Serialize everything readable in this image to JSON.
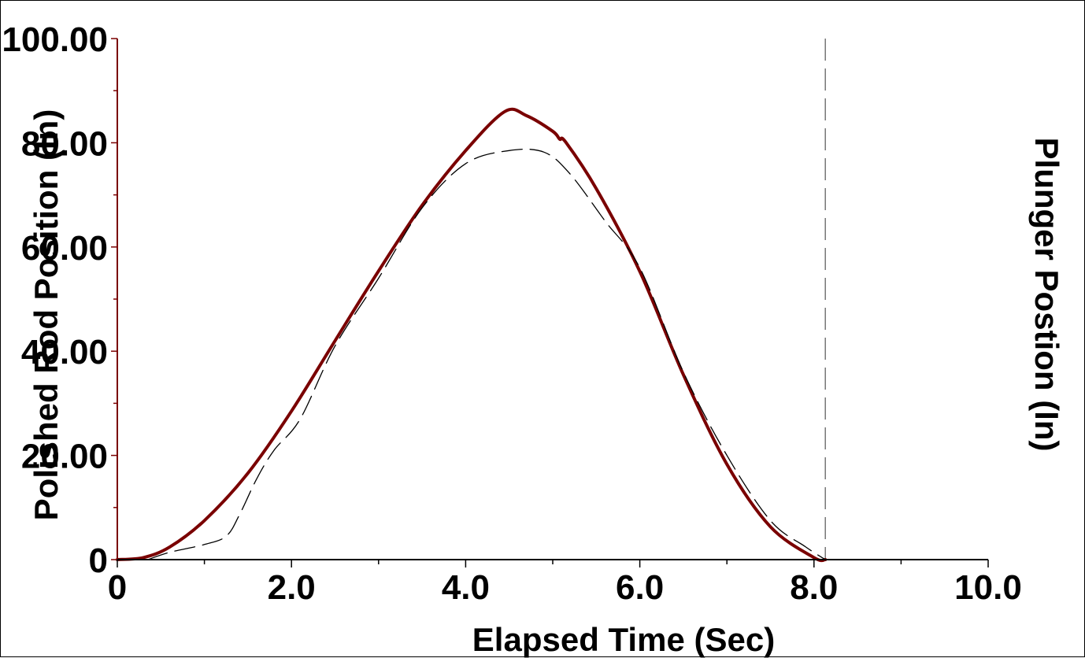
{
  "chart_data": {
    "type": "line",
    "title": "",
    "xlabel": "Elapsed Time (Sec)",
    "ylabel": "Polished Rod Position (In)",
    "ylabel_right": "Plunger Postion (In)",
    "xlim": [
      0,
      10
    ],
    "ylim": [
      0,
      100
    ],
    "x_ticks": [
      {
        "value": 0,
        "label": "0"
      },
      {
        "value": 2,
        "label": "2.0"
      },
      {
        "value": 4,
        "label": "4.0"
      },
      {
        "value": 6,
        "label": "6.0"
      },
      {
        "value": 8,
        "label": "8.0"
      },
      {
        "value": 10,
        "label": "10.0"
      }
    ],
    "y_ticks": [
      {
        "value": 0,
        "label": "0"
      },
      {
        "value": 20,
        "label": "20.00"
      },
      {
        "value": 40,
        "label": "40.00"
      },
      {
        "value": 60,
        "label": "60.00"
      },
      {
        "value": 80,
        "label": "80.00"
      },
      {
        "value": 100,
        "label": "100.00"
      }
    ],
    "grid": false,
    "vertical_marker_x": 8.13,
    "series": [
      {
        "color": "#7a0000",
        "style": "solid",
        "points": [
          [
            0,
            0
          ],
          [
            0.3,
            0.4
          ],
          [
            0.6,
            2.4
          ],
          [
            1.0,
            7.5
          ],
          [
            1.5,
            16.6
          ],
          [
            2.0,
            28.5
          ],
          [
            2.5,
            42
          ],
          [
            3.0,
            55.4
          ],
          [
            3.5,
            68
          ],
          [
            4.0,
            78.5
          ],
          [
            4.45,
            86
          ],
          [
            4.7,
            85.2
          ],
          [
            5.0,
            82.2
          ],
          [
            5.08,
            80.7
          ],
          [
            5.15,
            80.1
          ],
          [
            5.5,
            71.2
          ],
          [
            6.0,
            55.3
          ],
          [
            6.5,
            35.5
          ],
          [
            7.0,
            18.3
          ],
          [
            7.5,
            6.3
          ],
          [
            8.0,
            0.4
          ],
          [
            8.13,
            0
          ]
        ]
      },
      {
        "color": "#000000",
        "style": "dashed",
        "points": [
          [
            0.35,
            0
          ],
          [
            0.6,
            1.4
          ],
          [
            1.0,
            2.9
          ],
          [
            1.25,
            4.5
          ],
          [
            1.4,
            8.5
          ],
          [
            1.6,
            15.5
          ],
          [
            1.8,
            21
          ],
          [
            2.1,
            27
          ],
          [
            2.5,
            41
          ],
          [
            3.0,
            54
          ],
          [
            3.5,
            67.5
          ],
          [
            4.0,
            76
          ],
          [
            4.5,
            78.5
          ],
          [
            4.9,
            78.2
          ],
          [
            5.2,
            74
          ],
          [
            5.6,
            65
          ],
          [
            6.0,
            56
          ],
          [
            6.5,
            36
          ],
          [
            7.0,
            20
          ],
          [
            7.5,
            7.5
          ],
          [
            7.9,
            2.5
          ],
          [
            8.13,
            0
          ]
        ]
      }
    ]
  }
}
